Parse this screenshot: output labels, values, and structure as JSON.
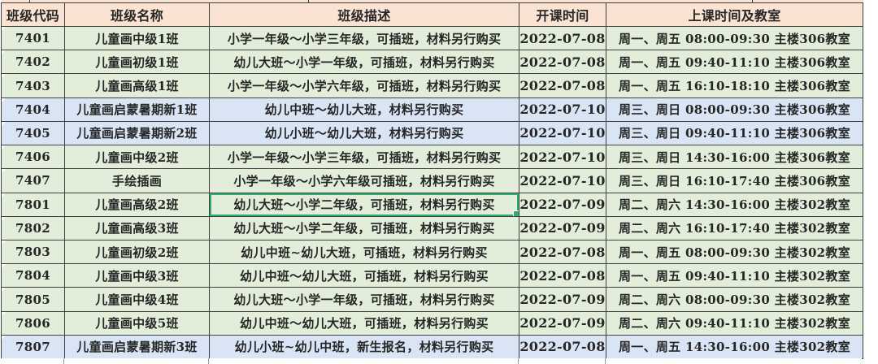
{
  "colors": {
    "header_bg": "#fbe3d4",
    "row_green": "#e2edda",
    "row_blue": "#d9e5f5",
    "grid_border": "#3f3f3f",
    "selection_green": "#2fae6f",
    "text": "#262626"
  },
  "table": {
    "columns": [
      {
        "key": "code",
        "label": "班级代码"
      },
      {
        "key": "name",
        "label": "班级名称"
      },
      {
        "key": "desc",
        "label": "班级描述"
      },
      {
        "key": "date",
        "label": "开课时间"
      },
      {
        "key": "time",
        "label": "上课时间及教室"
      }
    ],
    "selected_cell": {
      "row_code": "7801",
      "column": "desc"
    },
    "rows": [
      {
        "code": "7401",
        "name": "儿童画中级1班",
        "desc": "小学一年级～小学三年级，可插班，材料另行购买",
        "date": "2022-07-08",
        "time": "周一、周五 08:00-09:30 主楼306教室",
        "tint": "green",
        "selected_desc": false
      },
      {
        "code": "7402",
        "name": "儿童画初级1班",
        "desc": "幼儿大班～小学一年级，可插班，材料另行购买",
        "date": "2022-07-08",
        "time": "周一、周五 09:40-11:10 主楼306教室",
        "tint": "green",
        "selected_desc": false
      },
      {
        "code": "7403",
        "name": "儿童画高级1班",
        "desc": "小学一年级～小学六年级，可插班，材料另行购买",
        "date": "2022-07-08",
        "time": "周一、周五 16:10-18:10 主楼306教室",
        "tint": "green",
        "selected_desc": false
      },
      {
        "code": "7404",
        "name": "儿童画启蒙暑期新1班",
        "desc": "幼儿中班～幼儿大班，材料另行购买",
        "date": "2022-07-10",
        "time": "周三、周日 08:00-09:30 主楼306教室",
        "tint": "blue",
        "selected_desc": false
      },
      {
        "code": "7405",
        "name": "儿童画启蒙暑期新2班",
        "desc": "幼儿小班～幼儿大班，材料另行购买",
        "date": "2022-07-10",
        "time": "周三、周日 09:40-11:10 主楼306教室",
        "tint": "blue",
        "selected_desc": false
      },
      {
        "code": "7406",
        "name": "儿童画中级2班",
        "desc": "小学一年级～小学三年级，可插班，材料另行购买",
        "date": "2022-07-10",
        "time": "周三、周日 14:30-16:00 主楼306教室",
        "tint": "green",
        "selected_desc": false
      },
      {
        "code": "7407",
        "name": "手绘插画",
        "desc": "小学一年级～小学六年级可插班，材料另行购买",
        "date": "2022-07-10",
        "time": "周三、周日 16:10-17:40 主楼306教室",
        "tint": "green",
        "selected_desc": false
      },
      {
        "code": "7801",
        "name": "儿童画高级2班",
        "desc": "幼儿大班～小学二年级，可插班，材料另行购买",
        "date": "2022-07-09",
        "time": "周二、周六 14:30-16:00 主楼302教室",
        "tint": "green",
        "selected_desc": true
      },
      {
        "code": "7802",
        "name": "儿童画高级3班",
        "desc": "幼儿大班～小学二年级，可插班，材料另行购买",
        "date": "2022-07-09",
        "time": "周二、周六 16:10-17:40 主楼302教室",
        "tint": "green",
        "selected_desc": false
      },
      {
        "code": "7803",
        "name": "儿童画初级2班",
        "desc": "幼儿中班~幼儿大班，可插班，材料另行购买",
        "date": "2022-07-08",
        "time": "周一、周五 08:00-09:30 主楼302教室",
        "tint": "green",
        "selected_desc": false
      },
      {
        "code": "7804",
        "name": "儿童画中级3班",
        "desc": "幼儿中班～幼儿大班，可插班，材料另行购买",
        "date": "2022-07-08",
        "time": "周一、周五 09:40-11:10 主楼302教室",
        "tint": "green",
        "selected_desc": false
      },
      {
        "code": "7805",
        "name": "儿童画中级4班",
        "desc": "幼儿大班～小学一年级，可插班，材料另行购买",
        "date": "2022-07-09",
        "time": "周二、周六 08:00-09:30 主楼302教室",
        "tint": "green",
        "selected_desc": false
      },
      {
        "code": "7806",
        "name": "儿童画中级5班",
        "desc": "幼儿中班～幼儿大班，可插班，材料另行购买",
        "date": "2022-07-09",
        "time": "周二、周六 09:40-11:10 主楼302教室",
        "tint": "green",
        "selected_desc": false
      },
      {
        "code": "7807",
        "name": "儿童画启蒙暑期新3班",
        "desc": "幼儿小班~幼儿中班，新生报名，材料另行购买",
        "date": "2022-07-08",
        "time": "周一、周五 14:30-16:00 主楼302教室",
        "tint": "blue",
        "selected_desc": false
      }
    ]
  }
}
